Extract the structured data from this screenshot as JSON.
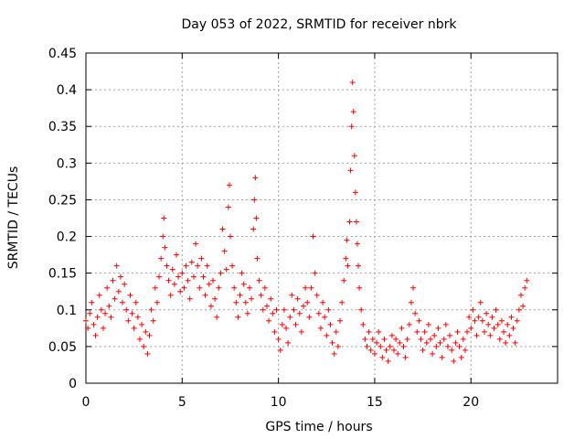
{
  "chart_data": {
    "type": "scatter",
    "title": "Day 053 of 2022, SRMTID for receiver nbrk",
    "xlabel": "GPS time / hours",
    "ylabel": "SRMTID / TECUs",
    "xlim": [
      0,
      24.5
    ],
    "ylim": [
      0,
      0.45
    ],
    "x_ticks": [
      0,
      5,
      10,
      15,
      20
    ],
    "x_tick_labels": [
      "0",
      "5",
      "10",
      "15",
      "20"
    ],
    "y_ticks": [
      0,
      0.05,
      0.1,
      0.15,
      0.2,
      0.25,
      0.3,
      0.35,
      0.4,
      0.45
    ],
    "y_tick_labels": [
      "0",
      "0.05",
      "0.1",
      "0.15",
      "0.2",
      "0.25",
      "0.3",
      "0.35",
      "0.4",
      "0.45"
    ],
    "grid": true,
    "marker": "+",
    "color": "#ff0000",
    "series": [
      {
        "name": "SRMTID",
        "points": [
          [
            0.0,
            0.085
          ],
          [
            0.1,
            0.075
          ],
          [
            0.2,
            0.095
          ],
          [
            0.3,
            0.11
          ],
          [
            0.4,
            0.08
          ],
          [
            0.5,
            0.065
          ],
          [
            0.6,
            0.09
          ],
          [
            0.7,
            0.12
          ],
          [
            0.8,
            0.1
          ],
          [
            0.9,
            0.075
          ],
          [
            1.0,
            0.095
          ],
          [
            1.1,
            0.13
          ],
          [
            1.2,
            0.105
          ],
          [
            1.3,
            0.09
          ],
          [
            1.4,
            0.14
          ],
          [
            1.5,
            0.115
          ],
          [
            1.6,
            0.16
          ],
          [
            1.7,
            0.125
          ],
          [
            1.8,
            0.145
          ],
          [
            1.9,
            0.11
          ],
          [
            2.0,
            0.135
          ],
          [
            2.1,
            0.1
          ],
          [
            2.2,
            0.085
          ],
          [
            2.3,
            0.12
          ],
          [
            2.4,
            0.095
          ],
          [
            2.5,
            0.075
          ],
          [
            2.6,
            0.11
          ],
          [
            2.7,
            0.09
          ],
          [
            2.8,
            0.06
          ],
          [
            2.9,
            0.08
          ],
          [
            3.0,
            0.05
          ],
          [
            3.1,
            0.07
          ],
          [
            3.2,
            0.04
          ],
          [
            3.3,
            0.065
          ],
          [
            3.4,
            0.1
          ],
          [
            3.5,
            0.085
          ],
          [
            3.6,
            0.13
          ],
          [
            3.7,
            0.11
          ],
          [
            3.8,
            0.145
          ],
          [
            3.9,
            0.17
          ],
          [
            4.0,
            0.2
          ],
          [
            4.05,
            0.225
          ],
          [
            4.1,
            0.185
          ],
          [
            4.2,
            0.16
          ],
          [
            4.3,
            0.14
          ],
          [
            4.4,
            0.12
          ],
          [
            4.5,
            0.155
          ],
          [
            4.6,
            0.135
          ],
          [
            4.7,
            0.175
          ],
          [
            4.8,
            0.145
          ],
          [
            4.9,
            0.125
          ],
          [
            5.0,
            0.15
          ],
          [
            5.1,
            0.13
          ],
          [
            5.2,
            0.16
          ],
          [
            5.3,
            0.14
          ],
          [
            5.4,
            0.115
          ],
          [
            5.5,
            0.165
          ],
          [
            5.6,
            0.145
          ],
          [
            5.7,
            0.19
          ],
          [
            5.8,
            0.16
          ],
          [
            5.9,
            0.13
          ],
          [
            6.0,
            0.17
          ],
          [
            6.1,
            0.145
          ],
          [
            6.2,
            0.12
          ],
          [
            6.3,
            0.16
          ],
          [
            6.4,
            0.135
          ],
          [
            6.5,
            0.105
          ],
          [
            6.6,
            0.14
          ],
          [
            6.7,
            0.115
          ],
          [
            6.8,
            0.09
          ],
          [
            6.9,
            0.13
          ],
          [
            7.0,
            0.15
          ],
          [
            7.1,
            0.21
          ],
          [
            7.2,
            0.18
          ],
          [
            7.3,
            0.155
          ],
          [
            7.4,
            0.24
          ],
          [
            7.45,
            0.27
          ],
          [
            7.5,
            0.2
          ],
          [
            7.6,
            0.16
          ],
          [
            7.7,
            0.13
          ],
          [
            7.8,
            0.11
          ],
          [
            7.9,
            0.09
          ],
          [
            8.0,
            0.12
          ],
          [
            8.1,
            0.15
          ],
          [
            8.2,
            0.135
          ],
          [
            8.3,
            0.11
          ],
          [
            8.4,
            0.095
          ],
          [
            8.5,
            0.13
          ],
          [
            8.6,
            0.115
          ],
          [
            8.7,
            0.21
          ],
          [
            8.75,
            0.25
          ],
          [
            8.8,
            0.28
          ],
          [
            8.85,
            0.225
          ],
          [
            8.9,
            0.17
          ],
          [
            9.0,
            0.14
          ],
          [
            9.1,
            0.12
          ],
          [
            9.2,
            0.1
          ],
          [
            9.3,
            0.13
          ],
          [
            9.4,
            0.105
          ],
          [
            9.5,
            0.085
          ],
          [
            9.6,
            0.115
          ],
          [
            9.7,
            0.095
          ],
          [
            9.8,
            0.07
          ],
          [
            9.9,
            0.1
          ],
          [
            10.0,
            0.06
          ],
          [
            10.1,
            0.045
          ],
          [
            10.2,
            0.08
          ],
          [
            10.3,
            0.1
          ],
          [
            10.4,
            0.075
          ],
          [
            10.5,
            0.055
          ],
          [
            10.6,
            0.09
          ],
          [
            10.7,
            0.12
          ],
          [
            10.8,
            0.1
          ],
          [
            10.9,
            0.08
          ],
          [
            11.0,
            0.115
          ],
          [
            11.1,
            0.095
          ],
          [
            11.2,
            0.07
          ],
          [
            11.3,
            0.105
          ],
          [
            11.4,
            0.13
          ],
          [
            11.5,
            0.11
          ],
          [
            11.6,
            0.09
          ],
          [
            11.7,
            0.13
          ],
          [
            11.8,
            0.2
          ],
          [
            11.9,
            0.15
          ],
          [
            12.0,
            0.12
          ],
          [
            12.1,
            0.095
          ],
          [
            12.2,
            0.075
          ],
          [
            12.3,
            0.11
          ],
          [
            12.4,
            0.09
          ],
          [
            12.5,
            0.065
          ],
          [
            12.6,
            0.1
          ],
          [
            12.7,
            0.08
          ],
          [
            12.8,
            0.055
          ],
          [
            12.9,
            0.04
          ],
          [
            13.0,
            0.07
          ],
          [
            13.1,
            0.05
          ],
          [
            13.2,
            0.085
          ],
          [
            13.3,
            0.11
          ],
          [
            13.4,
            0.14
          ],
          [
            13.5,
            0.17
          ],
          [
            13.55,
            0.195
          ],
          [
            13.6,
            0.16
          ],
          [
            13.7,
            0.22
          ],
          [
            13.75,
            0.29
          ],
          [
            13.8,
            0.35
          ],
          [
            13.85,
            0.41
          ],
          [
            13.9,
            0.37
          ],
          [
            13.95,
            0.31
          ],
          [
            14.0,
            0.26
          ],
          [
            14.05,
            0.22
          ],
          [
            14.1,
            0.19
          ],
          [
            14.15,
            0.16
          ],
          [
            14.2,
            0.13
          ],
          [
            14.3,
            0.1
          ],
          [
            14.4,
            0.08
          ],
          [
            14.5,
            0.06
          ],
          [
            14.6,
            0.05
          ],
          [
            14.7,
            0.07
          ],
          [
            14.8,
            0.045
          ],
          [
            14.9,
            0.06
          ],
          [
            15.0,
            0.04
          ],
          [
            15.1,
            0.055
          ],
          [
            15.2,
            0.07
          ],
          [
            15.3,
            0.05
          ],
          [
            15.4,
            0.035
          ],
          [
            15.5,
            0.06
          ],
          [
            15.6,
            0.045
          ],
          [
            15.7,
            0.03
          ],
          [
            15.8,
            0.05
          ],
          [
            15.9,
            0.065
          ],
          [
            16.0,
            0.045
          ],
          [
            16.1,
            0.06
          ],
          [
            16.2,
            0.04
          ],
          [
            16.3,
            0.055
          ],
          [
            16.4,
            0.075
          ],
          [
            16.5,
            0.05
          ],
          [
            16.6,
            0.035
          ],
          [
            16.7,
            0.06
          ],
          [
            16.8,
            0.08
          ],
          [
            16.9,
            0.11
          ],
          [
            17.0,
            0.13
          ],
          [
            17.1,
            0.095
          ],
          [
            17.2,
            0.07
          ],
          [
            17.3,
            0.085
          ],
          [
            17.4,
            0.06
          ],
          [
            17.5,
            0.045
          ],
          [
            17.6,
            0.07
          ],
          [
            17.7,
            0.055
          ],
          [
            17.8,
            0.08
          ],
          [
            17.9,
            0.06
          ],
          [
            18.0,
            0.04
          ],
          [
            18.1,
            0.065
          ],
          [
            18.2,
            0.05
          ],
          [
            18.3,
            0.075
          ],
          [
            18.4,
            0.055
          ],
          [
            18.5,
            0.035
          ],
          [
            18.6,
            0.06
          ],
          [
            18.7,
            0.08
          ],
          [
            18.8,
            0.05
          ],
          [
            18.9,
            0.065
          ],
          [
            19.0,
            0.045
          ],
          [
            19.1,
            0.03
          ],
          [
            19.2,
            0.055
          ],
          [
            19.3,
            0.07
          ],
          [
            19.4,
            0.05
          ],
          [
            19.5,
            0.035
          ],
          [
            19.6,
            0.06
          ],
          [
            19.7,
            0.045
          ],
          [
            19.8,
            0.07
          ],
          [
            19.9,
            0.09
          ],
          [
            20.0,
            0.075
          ],
          [
            20.1,
            0.1
          ],
          [
            20.2,
            0.085
          ],
          [
            20.3,
            0.065
          ],
          [
            20.4,
            0.09
          ],
          [
            20.5,
            0.11
          ],
          [
            20.6,
            0.085
          ],
          [
            20.7,
            0.07
          ],
          [
            20.8,
            0.095
          ],
          [
            20.9,
            0.08
          ],
          [
            21.0,
            0.065
          ],
          [
            21.1,
            0.09
          ],
          [
            21.2,
            0.075
          ],
          [
            21.3,
            0.1
          ],
          [
            21.4,
            0.08
          ],
          [
            21.5,
            0.06
          ],
          [
            21.6,
            0.085
          ],
          [
            21.7,
            0.07
          ],
          [
            21.8,
            0.055
          ],
          [
            21.9,
            0.08
          ],
          [
            22.0,
            0.065
          ],
          [
            22.1,
            0.09
          ],
          [
            22.2,
            0.075
          ],
          [
            22.3,
            0.055
          ],
          [
            22.4,
            0.085
          ],
          [
            22.5,
            0.1
          ],
          [
            22.6,
            0.12
          ],
          [
            22.7,
            0.105
          ],
          [
            22.8,
            0.13
          ],
          [
            22.9,
            0.14
          ]
        ]
      }
    ]
  }
}
